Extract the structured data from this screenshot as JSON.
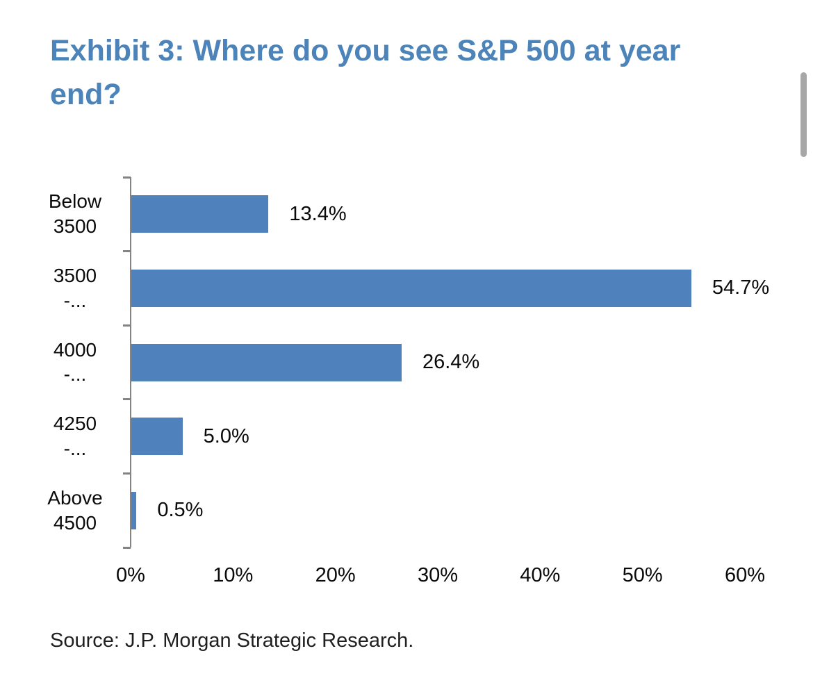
{
  "header": {
    "title_lines": [
      "Exhibit 3: Where do you see S&P 500 at year",
      "end?"
    ]
  },
  "colors": {
    "title": "#4c84ba",
    "bar": "#4f81bd",
    "axis": "#848484",
    "text": "#0a0a0a",
    "source": "#1f1f1f",
    "scrollbar": "#a7a7a7",
    "bg": "#ffffff"
  },
  "chart_data": {
    "type": "bar",
    "orientation": "horizontal",
    "title": "Exhibit 3: Where do you see S&P 500 at year end?",
    "categories": [
      "Below 3500",
      "3500 -...",
      "4000 -...",
      "4250 -...",
      "Above 4500"
    ],
    "category_display_lines": [
      [
        "Below",
        "3500"
      ],
      [
        "3500",
        "-..."
      ],
      [
        "4000",
        "-..."
      ],
      [
        "4250",
        "-..."
      ],
      [
        "Above",
        "4500"
      ]
    ],
    "values": [
      13.4,
      54.7,
      26.4,
      5.0,
      0.5
    ],
    "value_labels": [
      "13.4%",
      "54.7%",
      "26.4%",
      "5.0%",
      "0.5%"
    ],
    "x_tick_labels": [
      "0%",
      "10%",
      "20%",
      "30%",
      "40%",
      "50%",
      "60%"
    ],
    "xlim": [
      0,
      60
    ],
    "xlabel": "",
    "ylabel": "",
    "grid": false,
    "legend": "none",
    "bar_color": "#4f81bd"
  },
  "footer": {
    "source": "Source: J.P. Morgan Strategic Research."
  }
}
